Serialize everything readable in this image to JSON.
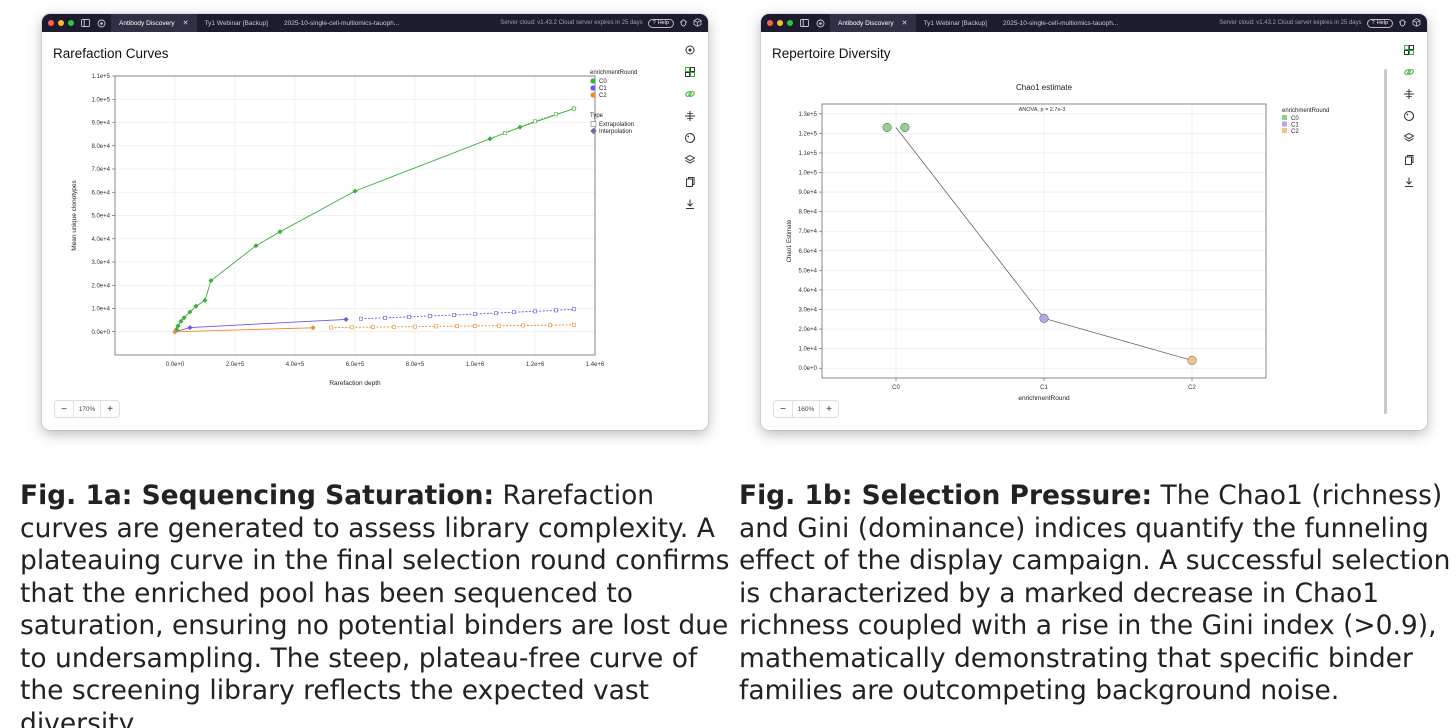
{
  "app": {
    "tabs": [
      {
        "label": "Antibody Discovery",
        "active": true,
        "closable": true
      },
      {
        "label": "Ty1 Webinar [Backup]",
        "active": false
      },
      {
        "label": "2025-10-single-cell-multiomics-tauoph...",
        "active": false
      }
    ],
    "server_status": "Server cloud: v1.43.2 Cloud server expires in 25 days",
    "help_label": "Help"
  },
  "panel_a": {
    "title": "Rarefaction Curves",
    "zoom": "170%",
    "toolbar_icons": [
      "settings-icon",
      "grid-icon",
      "link-icon",
      "move-icon",
      "palette-icon",
      "layers-icon",
      "copy-icon",
      "download-icon"
    ]
  },
  "panel_b": {
    "title": "Repertoire Diversity",
    "zoom": "160%",
    "toolbar_icons": [
      "grid-icon",
      "link-icon",
      "move-icon",
      "palette-icon",
      "layers-icon",
      "copy-icon",
      "download-icon"
    ]
  },
  "chart_data": [
    {
      "type": "line",
      "title": "",
      "xlabel": "Rarefaction depth",
      "ylabel": "Mean unique clonotypes",
      "xlim": [
        -200000,
        1400000
      ],
      "ylim": [
        -10000,
        110000
      ],
      "xticks": [
        "0.0e+0",
        "2.0e+5",
        "4.0e+5",
        "6.0e+5",
        "8.0e+5",
        "1.0e+6",
        "1.2e+6",
        "1.4e+6"
      ],
      "xtick_values": [
        0,
        200000,
        400000,
        600000,
        800000,
        1000000,
        1200000,
        1400000
      ],
      "yticks": [
        "0.0e+0",
        "1.0e+4",
        "2.0e+4",
        "3.0e+4",
        "4.0e+4",
        "5.0e+4",
        "6.0e+4",
        "7.0e+4",
        "8.0e+4",
        "9.0e+4",
        "1.0e+5",
        "1.1e+5"
      ],
      "ytick_values": [
        0,
        10000,
        20000,
        30000,
        40000,
        50000,
        60000,
        70000,
        80000,
        90000,
        100000,
        110000
      ],
      "legend": {
        "title": "enrichmentRound",
        "entries": [
          {
            "name": "C0",
            "color": "#3cb03c"
          },
          {
            "name": "C1",
            "color": "#6f56e0"
          },
          {
            "name": "C2",
            "color": "#f08a2a"
          }
        ],
        "type_title": "Type",
        "type_entries": [
          "Extrapolation",
          "Interpolation"
        ]
      },
      "series": [
        {
          "name": "C0",
          "color": "#3cb03c",
          "kind": "interpolation",
          "x": [
            0,
            5000,
            10000,
            20000,
            30000,
            50000,
            70000,
            100000,
            120000,
            270000,
            350000,
            600000,
            1050000,
            1150000,
            1330000
          ],
          "y": [
            0,
            1000,
            2500,
            4500,
            6000,
            8500,
            11000,
            13500,
            22000,
            37000,
            43000,
            60500,
            83000,
            88000,
            96000
          ]
        },
        {
          "name": "C0",
          "color": "#3cb03c",
          "kind": "extrapolation",
          "x": [
            1100000,
            1200000,
            1270000,
            1330000
          ],
          "y": [
            85500,
            90500,
            93500,
            96000
          ]
        },
        {
          "name": "C1",
          "color": "#6f56e0",
          "kind": "interpolation",
          "x": [
            0,
            50000,
            570000
          ],
          "y": [
            0,
            1800,
            5300
          ]
        },
        {
          "name": "C1",
          "color": "#6f56e0",
          "kind": "extrapolation",
          "x": [
            620000,
            700000,
            780000,
            850000,
            930000,
            1000000,
            1070000,
            1130000,
            1200000,
            1270000,
            1330000
          ],
          "y": [
            5600,
            6000,
            6400,
            6800,
            7200,
            7600,
            8000,
            8400,
            8800,
            9200,
            9700
          ]
        },
        {
          "name": "C2",
          "color": "#f08a2a",
          "kind": "interpolation",
          "x": [
            0,
            460000
          ],
          "y": [
            0,
            1700
          ]
        },
        {
          "name": "C2",
          "color": "#f08a2a",
          "kind": "extrapolation",
          "x": [
            520000,
            590000,
            660000,
            730000,
            800000,
            870000,
            940000,
            1000000,
            1080000,
            1160000,
            1250000,
            1330000
          ],
          "y": [
            1800,
            1900,
            2000,
            2100,
            2200,
            2300,
            2400,
            2500,
            2600,
            2700,
            2800,
            3000
          ]
        }
      ]
    },
    {
      "type": "line",
      "title": "Chao1 estimate",
      "annotation": "ANOVA, p = 2.7e-3",
      "xlabel": "enrichmentRound",
      "ylabel": "Chao1 Estimate",
      "categories": [
        "C0",
        "C1",
        "C2"
      ],
      "ylim": [
        -5000,
        135000
      ],
      "yticks": [
        "0.0e+0",
        "1.0e+4",
        "2.0e+4",
        "3.0e+4",
        "4.0e+4",
        "5.0e+4",
        "6.0e+4",
        "7.0e+4",
        "8.0e+4",
        "9.0e+4",
        "1.0e+5",
        "1.1e+5",
        "1.2e+5",
        "1.3e+5"
      ],
      "ytick_values": [
        0,
        10000,
        20000,
        30000,
        40000,
        50000,
        60000,
        70000,
        80000,
        90000,
        100000,
        110000,
        120000,
        130000
      ],
      "legend": {
        "title": "enrichmentRound",
        "entries": [
          {
            "name": "C0",
            "color": "#8fd18a"
          },
          {
            "name": "C1",
            "color": "#b5a6ee"
          },
          {
            "name": "C2",
            "color": "#f5c08a"
          }
        ]
      },
      "points": [
        {
          "category": "C0",
          "value": 123000,
          "color": "#8fd18a",
          "offset": -0.06
        },
        {
          "category": "C0",
          "value": 123000,
          "color": "#8fd18a",
          "offset": 0.06
        },
        {
          "category": "C1",
          "value": 25500,
          "color": "#b5a6ee",
          "offset": 0
        },
        {
          "category": "C2",
          "value": 4000,
          "color": "#f5c08a",
          "offset": 0
        }
      ],
      "line_values": [
        123000,
        25500,
        4000
      ]
    }
  ],
  "captions": [
    {
      "label": "Fig. 1a: Sequencing Saturation:",
      "text": " Rarefaction curves are generated to assess library complexity. A plateauing curve in the final selection round confirms that the enriched pool has been sequenced to saturation, ensuring no potential binders are lost due to undersampling. The steep, plateau-free curve of the screening library reflects the expected vast diversity."
    },
    {
      "label": "Fig. 1b: Selection Pressure:",
      "text": " The Chao1 (richness) and Gini (dominance) indices quantify the funneling effect of the display campaign. A successful selection is characterized by a marked decrease in Chao1 richness coupled with a rise in the Gini index (>0.9), mathematically demonstrating that specific binder families are outcompeting background noise."
    }
  ]
}
